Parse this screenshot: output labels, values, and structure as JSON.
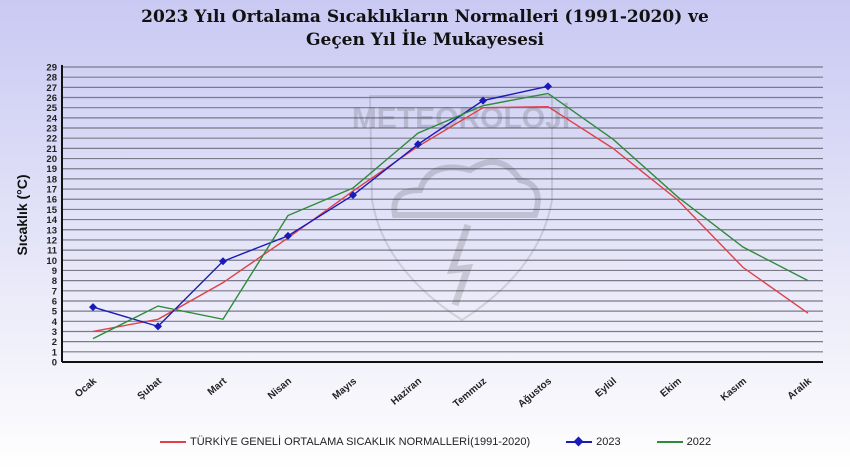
{
  "chart_data": {
    "type": "line",
    "title": "2023 Yılı Ortalama Sıcaklıkların Normalleri (1991-2020) ve Geçen Yıl İle Mukayesesi",
    "title_lines": [
      "2023 Yılı Ortalama Sıcaklıkların Normalleri (1991-2020) ve",
      "Geçen Yıl İle Mukayesesi"
    ],
    "ylabel": "Sıcaklık (°C)",
    "xlabel": "",
    "ylim": [
      0,
      29
    ],
    "yticks": [
      0,
      1,
      2,
      3,
      4,
      5,
      6,
      7,
      8,
      9,
      10,
      11,
      12,
      13,
      14,
      15,
      16,
      17,
      18,
      19,
      20,
      21,
      22,
      23,
      24,
      25,
      26,
      27,
      28,
      29
    ],
    "grid": true,
    "legend_position": "bottom",
    "categories": [
      "Ocak",
      "Şubat",
      "Mart",
      "Nisan",
      "Mayıs",
      "Haziran",
      "Temmuz",
      "Ağustos",
      "Eylül",
      "Ekim",
      "Kasım",
      "Aralık"
    ],
    "series": [
      {
        "name": "TÜRKİYE GENELİ ORTALAMA SICAKLIK NORMALLERİ(1991-2020)",
        "color": "#e0404a",
        "marker": false,
        "values": [
          3.0,
          4.2,
          7.8,
          12.2,
          16.8,
          21.2,
          25.0,
          25.1,
          21.0,
          15.9,
          9.3,
          4.8
        ]
      },
      {
        "name": "2023",
        "color": "#1a1ab8",
        "marker": true,
        "values": [
          5.4,
          3.5,
          9.9,
          12.4,
          16.4,
          21.4,
          25.7,
          27.1,
          null,
          null,
          null,
          null
        ]
      },
      {
        "name": "2022",
        "color": "#2e8b3a",
        "marker": false,
        "values": [
          2.3,
          5.5,
          4.2,
          14.4,
          17.1,
          22.5,
          25.2,
          26.4,
          21.9,
          16.2,
          11.3,
          8.0
        ]
      }
    ]
  },
  "watermark": "METEOROLOJİ"
}
